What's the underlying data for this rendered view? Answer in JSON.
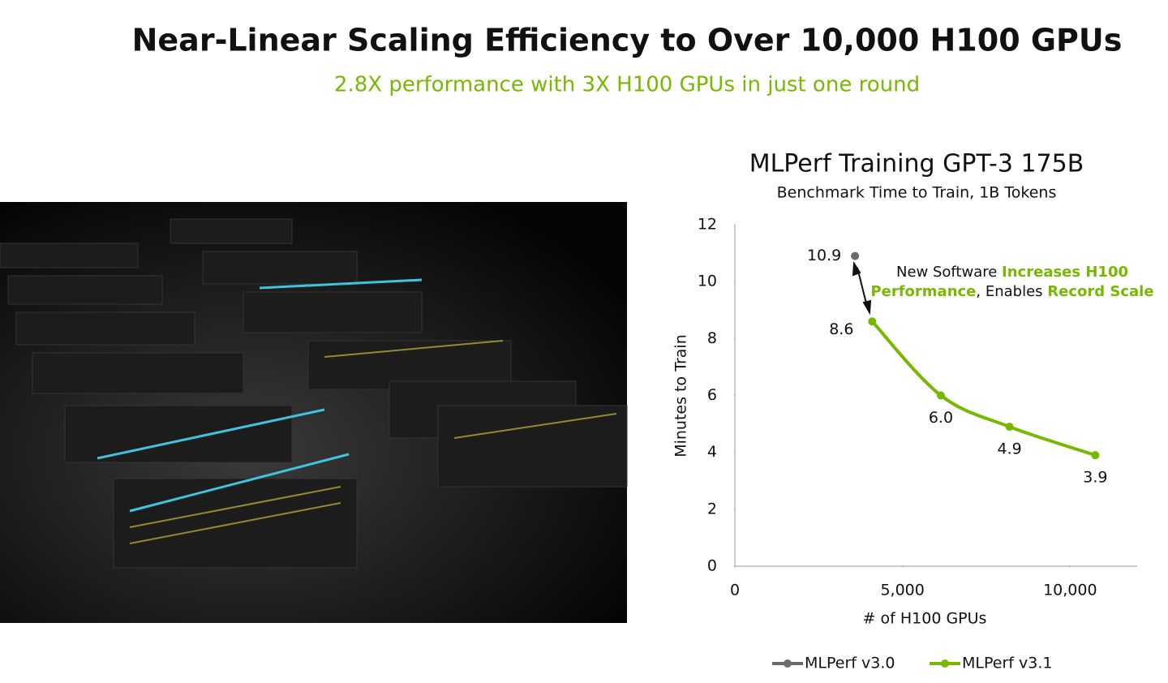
{
  "title": "Near-Linear Scaling Efficiency to Over 10,000 H100 GPUs",
  "subtitle": "2.8X performance with 3X H100 GPUs in just one round",
  "chart_data": {
    "type": "line",
    "title": "MLPerf Training GPT-3 175B",
    "subtitle": "Benchmark Time to Train, 1B Tokens",
    "x_label": "# of H100 GPUs",
    "y_label": "Minutes to Train",
    "xlim": [
      0,
      12000
    ],
    "xticks": [
      0,
      {
        "value": 5000,
        "label": "5,000"
      },
      {
        "value": 10000,
        "label": "10,000"
      }
    ],
    "ylim": [
      0,
      12
    ],
    "yticks": [
      0,
      2,
      4,
      6,
      8,
      10,
      12
    ],
    "series": [
      {
        "name": "MLPerf v3.0",
        "color": "#6b6b6b",
        "x": [
          3584
        ],
        "values": [
          10.9
        ],
        "value_labels": [
          "10.9"
        ]
      },
      {
        "name": "MLPerf v3.1",
        "color": "#76b900",
        "x": [
          4096,
          6144,
          8192,
          10752
        ],
        "values": [
          8.6,
          6.0,
          4.9,
          3.9
        ],
        "value_labels": [
          "8.6",
          "6.0",
          "4.9",
          "3.9"
        ]
      }
    ],
    "annotation": [
      [
        {
          "text": "New Software ",
          "bold": false
        },
        {
          "text": "Increases H100",
          "bold": true
        }
      ],
      [
        {
          "text": "Performance",
          "bold": true
        },
        {
          "text": ", Enables ",
          "bold": false
        },
        {
          "text": "Record Scale",
          "bold": true
        }
      ]
    ],
    "highlight_color": "#76b900"
  }
}
